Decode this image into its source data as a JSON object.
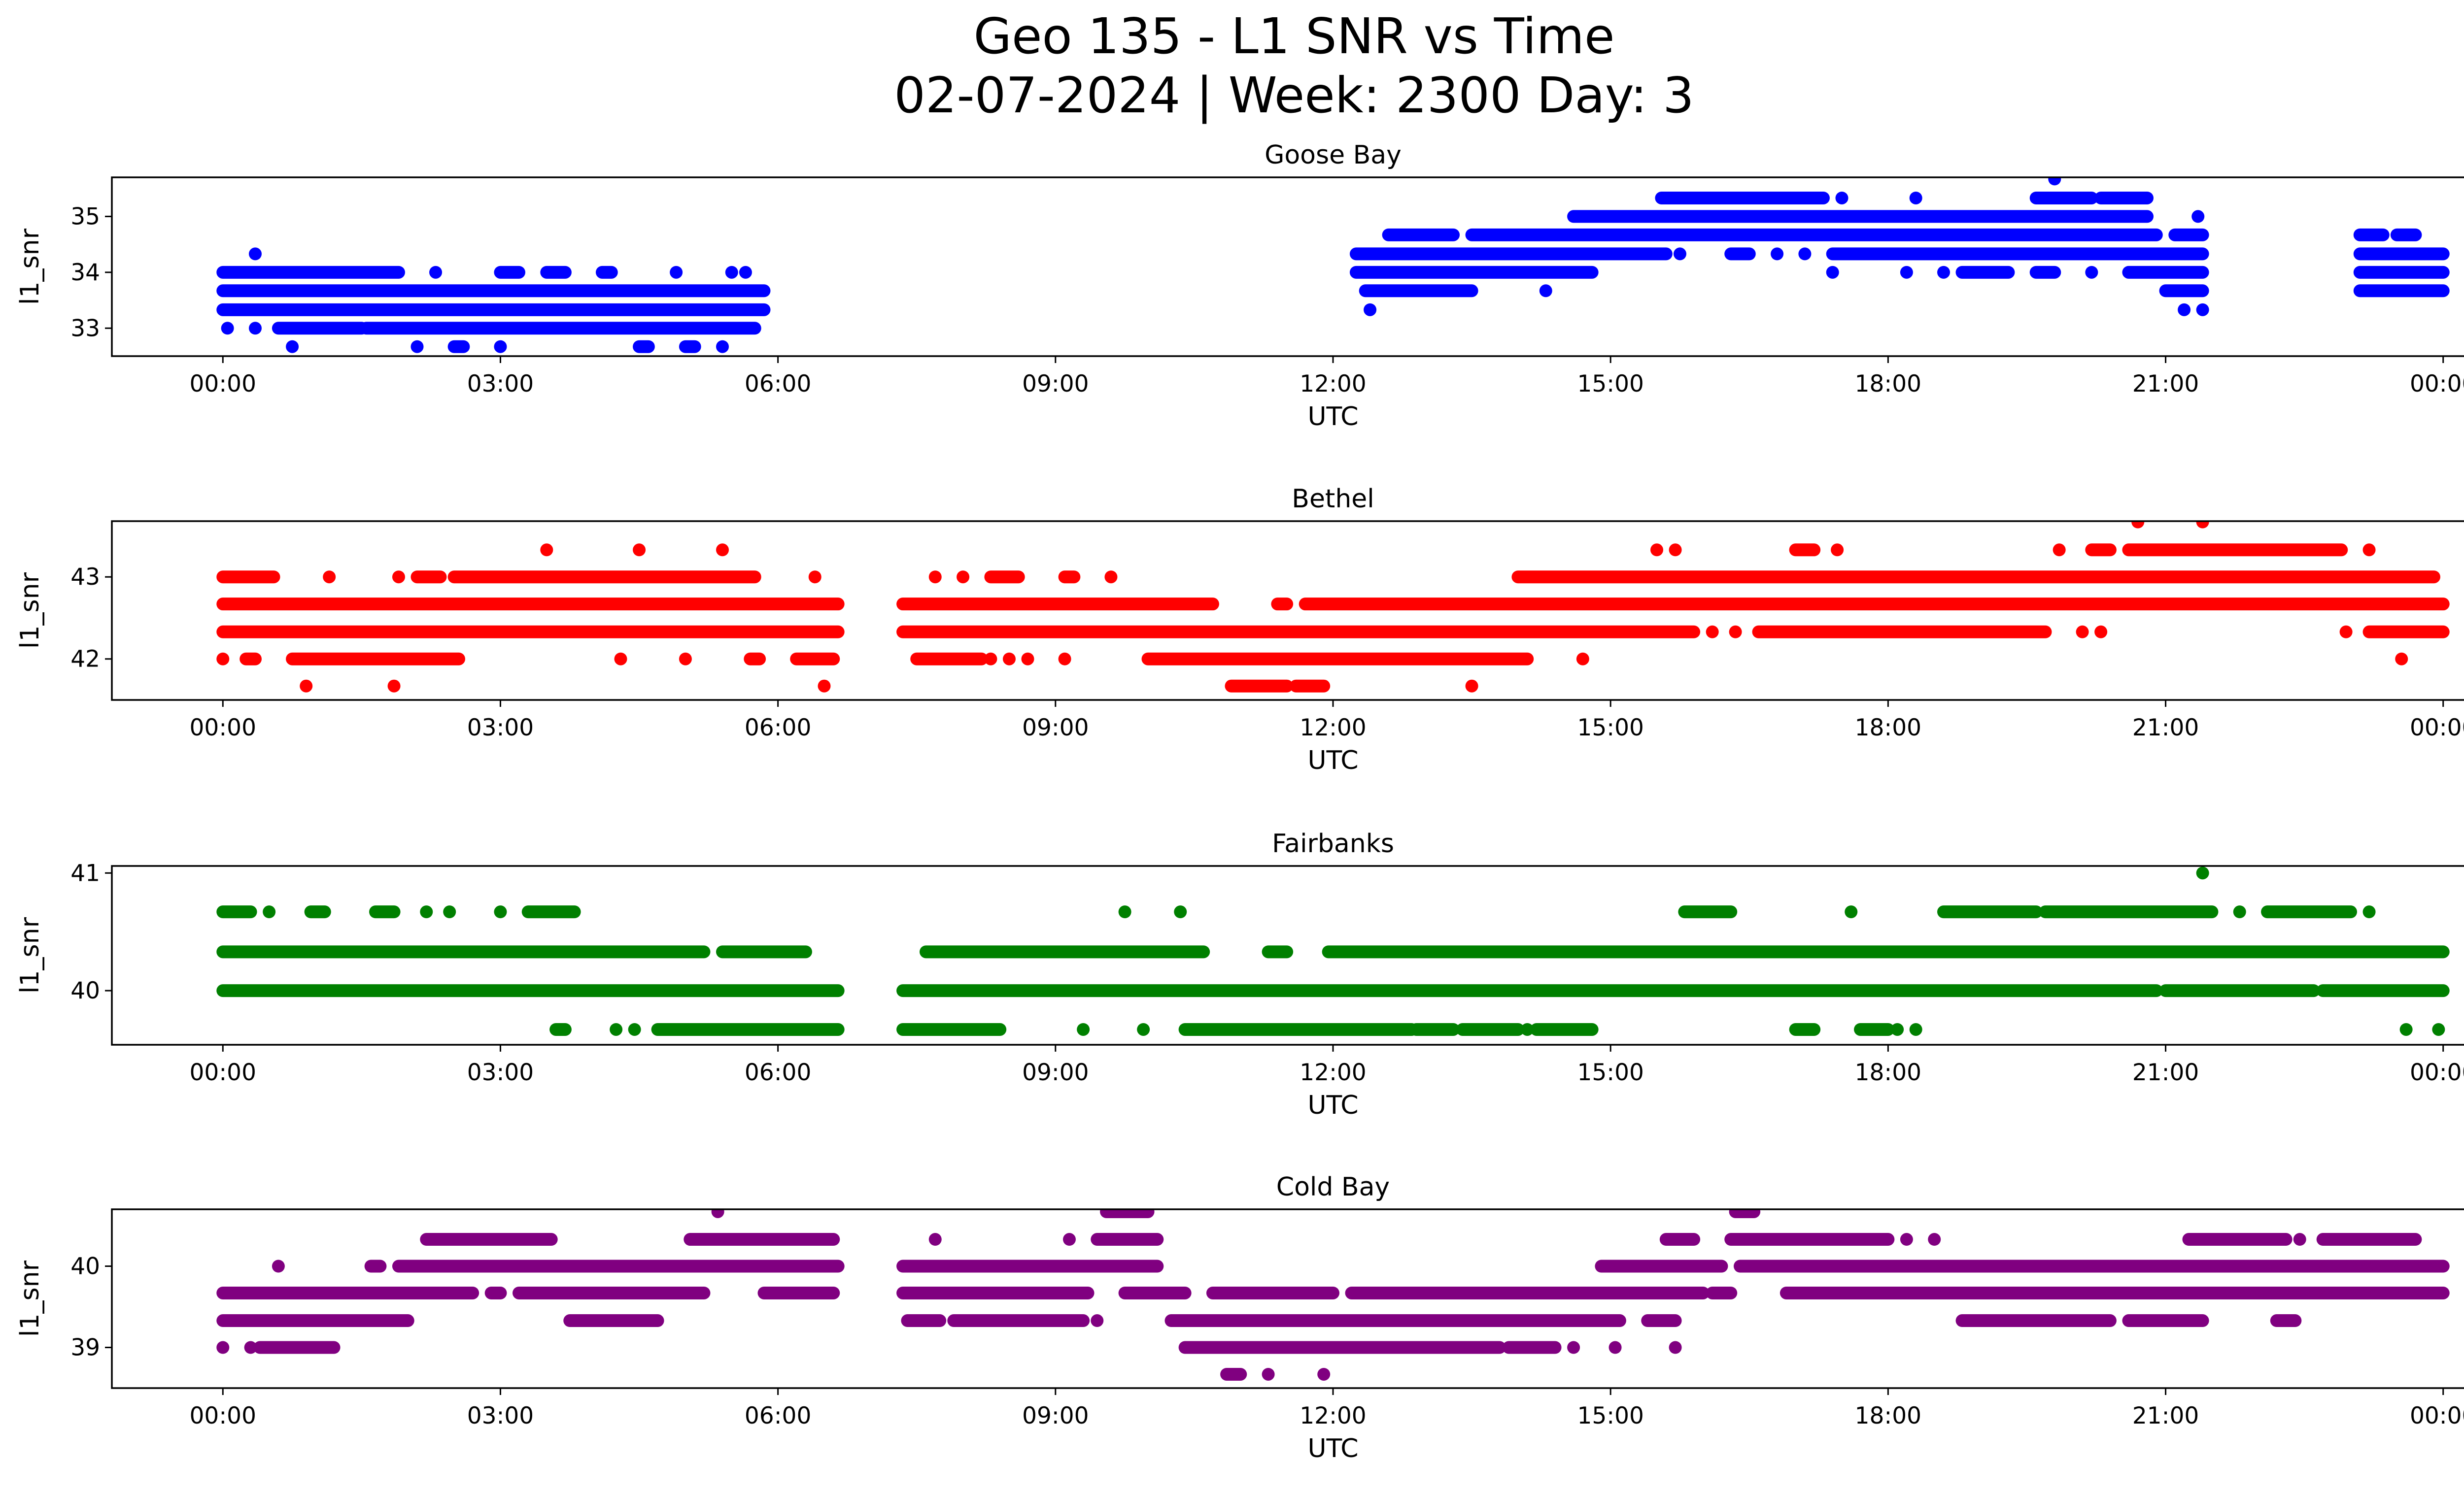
{
  "figure": {
    "title_line1": "Geo 135 - L1 SNR vs Time",
    "title_line2": "02-07-2024 | Week: 2300 Day: 3"
  },
  "chart_data": [
    {
      "type": "scatter",
      "title": "Goose Bay",
      "xlabel": "UTC",
      "ylabel": "l1_snr",
      "color": "#0000ff",
      "xlim_hours": [
        -1.2,
        25.2
      ],
      "ylim": [
        32.5,
        35.7
      ],
      "yticks": [
        33,
        34,
        35
      ],
      "xticks": [
        "00:00",
        "03:00",
        "06:00",
        "09:00",
        "12:00",
        "15:00",
        "18:00",
        "21:00",
        "00:00"
      ],
      "runs_note": "each run: [l1_snr, start_hour, end_hour]; single observation when start==end",
      "runs": [
        [
          33.33,
          0.0,
          5.85
        ],
        [
          33.67,
          0.0,
          5.85
        ],
        [
          34.0,
          0.0,
          1.9
        ],
        [
          34.0,
          2.3,
          2.3
        ],
        [
          34.0,
          3.0,
          3.2
        ],
        [
          34.0,
          3.5,
          3.7
        ],
        [
          34.0,
          4.1,
          4.2
        ],
        [
          34.0,
          4.9,
          4.9
        ],
        [
          34.0,
          5.5,
          5.5
        ],
        [
          34.0,
          5.65,
          5.65
        ],
        [
          34.33,
          0.35,
          0.35
        ],
        [
          33.0,
          0.05,
          0.05
        ],
        [
          33.0,
          0.35,
          0.35
        ],
        [
          33.0,
          0.6,
          1.5
        ],
        [
          33.0,
          1.55,
          5.75
        ],
        [
          32.67,
          0.75,
          0.75
        ],
        [
          32.67,
          2.1,
          2.1
        ],
        [
          32.67,
          2.5,
          2.6
        ],
        [
          32.67,
          3.0,
          3.0
        ],
        [
          32.67,
          4.5,
          4.6
        ],
        [
          32.67,
          5.0,
          5.1
        ],
        [
          32.67,
          5.4,
          5.4
        ],
        [
          34.0,
          12.25,
          14.8
        ],
        [
          34.0,
          17.4,
          17.4
        ],
        [
          34.0,
          18.2,
          18.2
        ],
        [
          34.0,
          18.6,
          18.6
        ],
        [
          34.0,
          18.8,
          19.3
        ],
        [
          34.0,
          19.6,
          19.8
        ],
        [
          34.0,
          20.2,
          20.2
        ],
        [
          34.0,
          20.6,
          21.4
        ],
        [
          34.0,
          23.1,
          24.0
        ],
        [
          33.67,
          12.35,
          13.5
        ],
        [
          33.67,
          14.3,
          14.3
        ],
        [
          33.67,
          21.0,
          21.4
        ],
        [
          33.67,
          23.1,
          24.0
        ],
        [
          33.33,
          12.4,
          12.4
        ],
        [
          33.33,
          21.2,
          21.2
        ],
        [
          33.33,
          21.4,
          21.4
        ],
        [
          34.33,
          12.25,
          15.6
        ],
        [
          34.33,
          15.75,
          15.75
        ],
        [
          34.33,
          16.3,
          16.5
        ],
        [
          34.33,
          16.8,
          16.8
        ],
        [
          34.33,
          17.1,
          17.1
        ],
        [
          34.33,
          17.4,
          21.4
        ],
        [
          34.33,
          23.1,
          24.0
        ],
        [
          34.67,
          12.6,
          13.3
        ],
        [
          34.67,
          13.5,
          20.9
        ],
        [
          34.67,
          21.1,
          21.4
        ],
        [
          34.67,
          23.1,
          23.35
        ],
        [
          34.67,
          23.5,
          23.7
        ],
        [
          35.0,
          14.6,
          20.8
        ],
        [
          35.0,
          21.35,
          21.35
        ],
        [
          35.33,
          15.55,
          17.3
        ],
        [
          35.33,
          17.5,
          17.5
        ],
        [
          35.33,
          18.3,
          18.3
        ],
        [
          35.33,
          19.6,
          20.2
        ],
        [
          35.33,
          20.3,
          20.8
        ],
        [
          35.67,
          19.8,
          19.8
        ]
      ]
    },
    {
      "type": "scatter",
      "title": "Bethel",
      "xlabel": "UTC",
      "ylabel": "l1_snr",
      "color": "#ff0000",
      "xlim_hours": [
        -1.2,
        25.2
      ],
      "ylim": [
        41.5,
        43.68
      ],
      "yticks": [
        42,
        43
      ],
      "xticks": [
        "00:00",
        "03:00",
        "06:00",
        "09:00",
        "12:00",
        "15:00",
        "18:00",
        "21:00",
        "00:00"
      ],
      "runs": [
        [
          42.67,
          0.0,
          6.65
        ],
        [
          42.67,
          7.35,
          10.7
        ],
        [
          42.67,
          11.4,
          11.5
        ],
        [
          42.67,
          11.7,
          24.0
        ],
        [
          42.33,
          0.0,
          6.65
        ],
        [
          42.33,
          7.35,
          15.9
        ],
        [
          42.33,
          16.1,
          16.1
        ],
        [
          42.33,
          16.35,
          16.35
        ],
        [
          42.33,
          16.6,
          19.7
        ],
        [
          42.33,
          20.1,
          20.1
        ],
        [
          42.33,
          20.3,
          20.3
        ],
        [
          42.33,
          22.95,
          22.95
        ],
        [
          42.33,
          23.2,
          24.0
        ],
        [
          43.0,
          0.0,
          0.55
        ],
        [
          43.0,
          1.15,
          1.15
        ],
        [
          43.0,
          1.9,
          1.9
        ],
        [
          43.0,
          2.1,
          2.35
        ],
        [
          43.0,
          2.5,
          5.75
        ],
        [
          43.0,
          6.4,
          6.4
        ],
        [
          43.0,
          7.7,
          7.7
        ],
        [
          43.0,
          8.0,
          8.0
        ],
        [
          43.0,
          8.3,
          8.6
        ],
        [
          43.0,
          9.1,
          9.2
        ],
        [
          43.0,
          9.6,
          9.6
        ],
        [
          43.0,
          14.0,
          23.9
        ],
        [
          42.0,
          0.0,
          0.0
        ],
        [
          42.0,
          0.25,
          0.35
        ],
        [
          42.0,
          0.75,
          2.55
        ],
        [
          42.0,
          4.3,
          4.3
        ],
        [
          42.0,
          5.0,
          5.0
        ],
        [
          42.0,
          5.7,
          5.8
        ],
        [
          42.0,
          6.2,
          6.6
        ],
        [
          42.0,
          7.5,
          8.2
        ],
        [
          42.0,
          8.3,
          8.3
        ],
        [
          42.0,
          8.5,
          8.5
        ],
        [
          42.0,
          8.7,
          8.7
        ],
        [
          42.0,
          9.1,
          9.1
        ],
        [
          42.0,
          10.0,
          14.1
        ],
        [
          42.0,
          14.7,
          14.7
        ],
        [
          42.0,
          23.55,
          23.55
        ],
        [
          43.33,
          3.5,
          3.5
        ],
        [
          43.33,
          4.5,
          4.5
        ],
        [
          43.33,
          5.4,
          5.4
        ],
        [
          43.33,
          15.5,
          15.5
        ],
        [
          43.33,
          15.7,
          15.7
        ],
        [
          43.33,
          17.0,
          17.2
        ],
        [
          43.33,
          17.45,
          17.45
        ],
        [
          43.33,
          19.85,
          19.85
        ],
        [
          43.33,
          20.2,
          20.4
        ],
        [
          43.33,
          20.6,
          22.9
        ],
        [
          43.33,
          23.2,
          23.2
        ],
        [
          43.67,
          20.7,
          20.7
        ],
        [
          43.67,
          21.4,
          21.4
        ],
        [
          41.67,
          0.9,
          0.9
        ],
        [
          41.67,
          1.85,
          1.85
        ],
        [
          41.67,
          6.5,
          6.5
        ],
        [
          41.67,
          10.9,
          11.5
        ],
        [
          41.67,
          11.6,
          11.9
        ],
        [
          41.67,
          13.5,
          13.5
        ]
      ]
    },
    {
      "type": "scatter",
      "title": "Fairbanks",
      "xlabel": "UTC",
      "ylabel": "l1_snr",
      "color": "#008000",
      "xlim_hours": [
        -1.2,
        25.2
      ],
      "ylim": [
        39.54,
        41.06
      ],
      "yticks": [
        40,
        41
      ],
      "xticks": [
        "00:00",
        "03:00",
        "06:00",
        "09:00",
        "12:00",
        "15:00",
        "18:00",
        "21:00",
        "00:00"
      ],
      "runs": [
        [
          40.0,
          0.0,
          6.65
        ],
        [
          40.0,
          7.35,
          20.9
        ],
        [
          40.0,
          21.0,
          22.6
        ],
        [
          40.0,
          22.7,
          24.0
        ],
        [
          40.33,
          0.0,
          5.2
        ],
        [
          40.33,
          5.4,
          6.3
        ],
        [
          40.33,
          7.6,
          10.6
        ],
        [
          40.33,
          11.3,
          11.5
        ],
        [
          40.33,
          11.95,
          24.0
        ],
        [
          40.67,
          0.0,
          0.3
        ],
        [
          40.67,
          0.5,
          0.5
        ],
        [
          40.67,
          0.95,
          1.1
        ],
        [
          40.67,
          1.65,
          1.85
        ],
        [
          40.67,
          2.2,
          2.2
        ],
        [
          40.67,
          2.45,
          2.45
        ],
        [
          40.67,
          3.0,
          3.0
        ],
        [
          40.67,
          3.3,
          3.8
        ],
        [
          40.67,
          9.75,
          9.75
        ],
        [
          40.67,
          10.35,
          10.35
        ],
        [
          40.67,
          15.8,
          16.3
        ],
        [
          40.67,
          17.6,
          17.6
        ],
        [
          40.67,
          18.6,
          19.6
        ],
        [
          40.67,
          19.7,
          21.5
        ],
        [
          40.67,
          21.8,
          21.8
        ],
        [
          40.67,
          22.1,
          23.0
        ],
        [
          40.67,
          23.2,
          23.2
        ],
        [
          41.0,
          21.4,
          21.4
        ],
        [
          39.67,
          3.6,
          3.7
        ],
        [
          39.67,
          4.25,
          4.25
        ],
        [
          39.67,
          4.45,
          4.45
        ],
        [
          39.67,
          4.7,
          6.65
        ],
        [
          39.67,
          7.35,
          8.4
        ],
        [
          39.67,
          9.3,
          9.3
        ],
        [
          39.67,
          9.95,
          9.95
        ],
        [
          39.67,
          10.4,
          12.85
        ],
        [
          39.67,
          12.9,
          13.3
        ],
        [
          39.67,
          13.4,
          14.0
        ],
        [
          39.67,
          14.1,
          14.1
        ],
        [
          39.67,
          14.2,
          14.8
        ],
        [
          39.67,
          17.0,
          17.2
        ],
        [
          39.67,
          17.7,
          18.0
        ],
        [
          39.67,
          18.1,
          18.1
        ],
        [
          39.67,
          18.3,
          18.3
        ],
        [
          39.67,
          23.6,
          23.6
        ],
        [
          39.67,
          23.95,
          23.95
        ]
      ]
    },
    {
      "type": "scatter",
      "title": "Cold Bay",
      "xlabel": "UTC",
      "ylabel": "l1_snr",
      "color": "#800080",
      "xlim_hours": [
        -1.2,
        25.2
      ],
      "ylim": [
        38.5,
        40.7
      ],
      "yticks": [
        39,
        40
      ],
      "xticks": [
        "00:00",
        "03:00",
        "06:00",
        "09:00",
        "12:00",
        "15:00",
        "18:00",
        "21:00",
        "00:00"
      ],
      "runs": [
        [
          40.0,
          0.6,
          0.6
        ],
        [
          40.0,
          1.6,
          1.7
        ],
        [
          40.0,
          1.9,
          6.65
        ],
        [
          40.0,
          7.35,
          10.1
        ],
        [
          40.0,
          14.9,
          16.2
        ],
        [
          40.0,
          16.4,
          24.0
        ],
        [
          40.33,
          2.2,
          3.55
        ],
        [
          40.33,
          5.05,
          6.6
        ],
        [
          40.33,
          7.7,
          7.7
        ],
        [
          40.33,
          9.15,
          9.15
        ],
        [
          40.33,
          9.45,
          10.1
        ],
        [
          40.33,
          15.6,
          15.9
        ],
        [
          40.33,
          16.3,
          18.0
        ],
        [
          40.33,
          18.2,
          18.2
        ],
        [
          40.33,
          18.5,
          18.5
        ],
        [
          40.33,
          21.25,
          22.3
        ],
        [
          40.33,
          22.45,
          22.45
        ],
        [
          40.33,
          22.7,
          23.7
        ],
        [
          40.67,
          5.35,
          5.35
        ],
        [
          40.67,
          9.55,
          10.0
        ],
        [
          40.67,
          16.35,
          16.55
        ],
        [
          39.67,
          0.0,
          2.7
        ],
        [
          39.67,
          2.9,
          3.0
        ],
        [
          39.67,
          3.2,
          5.2
        ],
        [
          39.67,
          5.85,
          6.6
        ],
        [
          39.67,
          7.35,
          9.35
        ],
        [
          39.67,
          9.75,
          10.4
        ],
        [
          39.67,
          10.7,
          12.0
        ],
        [
          39.67,
          12.2,
          16.0
        ],
        [
          39.67,
          16.1,
          16.3
        ],
        [
          39.67,
          16.9,
          24.0
        ],
        [
          39.33,
          0.0,
          2.0
        ],
        [
          39.33,
          3.75,
          4.7
        ],
        [
          39.33,
          7.4,
          7.75
        ],
        [
          39.33,
          7.9,
          9.3
        ],
        [
          39.33,
          9.45,
          9.45
        ],
        [
          39.33,
          10.25,
          15.1
        ],
        [
          39.33,
          15.4,
          15.7
        ],
        [
          39.33,
          18.8,
          20.4
        ],
        [
          39.33,
          20.6,
          21.4
        ],
        [
          39.33,
          22.2,
          22.4
        ],
        [
          39.0,
          0.0,
          0.0
        ],
        [
          39.0,
          0.3,
          0.3
        ],
        [
          39.0,
          0.4,
          1.2
        ],
        [
          39.0,
          10.4,
          13.8
        ],
        [
          39.0,
          13.9,
          14.4
        ],
        [
          39.0,
          14.6,
          14.6
        ],
        [
          39.0,
          15.05,
          15.05
        ],
        [
          39.0,
          15.7,
          15.7
        ],
        [
          38.67,
          10.85,
          11.0
        ],
        [
          38.67,
          11.3,
          11.3
        ],
        [
          38.67,
          11.9,
          11.9
        ]
      ]
    }
  ]
}
